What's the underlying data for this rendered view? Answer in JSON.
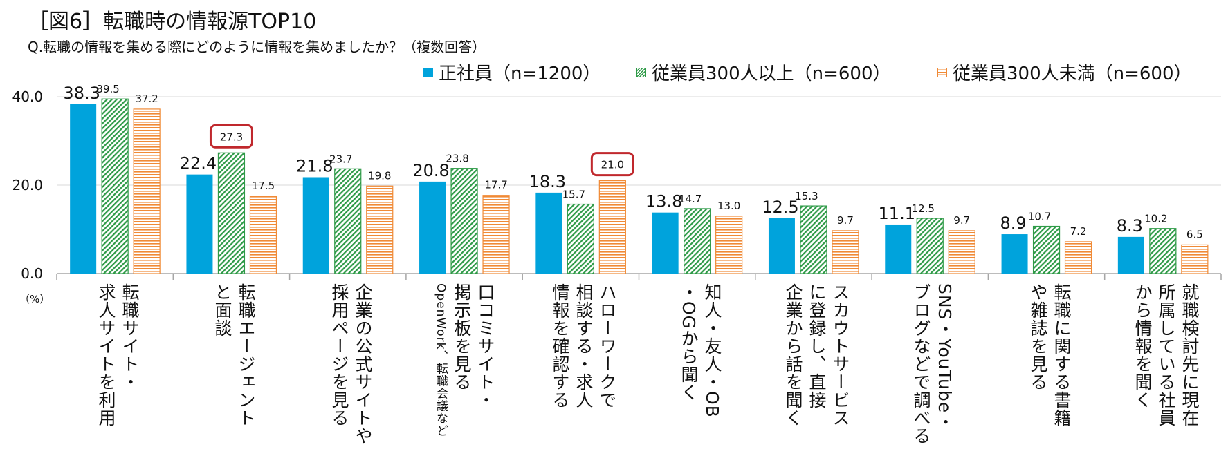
{
  "title": "［図6］転職時の情報源TOP10",
  "question": "Q.転職の情報を集める際にどのように情報を集めましたか？（複数回答）",
  "unit_label": "（%）",
  "legend": [
    {
      "label": "正社員（n=1200）",
      "color": "#00A3DC",
      "pattern": "solid"
    },
    {
      "label": "従業員300人以上（n=600）",
      "color": "#2E9A47",
      "pattern": "diagonal-stripes"
    },
    {
      "label": "従業員300人未満（n=600）",
      "color": "#F08A36",
      "pattern": "horizontal-stripes"
    }
  ],
  "chart_data": {
    "type": "bar",
    "title": "［図6］転職時の情報源TOP10",
    "ylim": [
      0,
      40
    ],
    "yticks": [
      "0.0",
      "20.0",
      "40.0"
    ],
    "grid": true,
    "legend_position": "top-right",
    "categories": [
      [
        "転職サイト・",
        "求人サイトを利用"
      ],
      [
        "転職エージェント",
        "と面談"
      ],
      [
        "企業の公式サイトや",
        "採用ページを見る"
      ],
      [
        "口コミサイト・",
        "掲示板を見る",
        "OpenWork、転職会議など"
      ],
      [
        "ハローワークで",
        "相談する・求人",
        "情報を確認する"
      ],
      [
        "知人・友人・OB",
        "・OGから聞く"
      ],
      [
        "スカウトサービス",
        "に登録し、直接",
        "企業から話を聞く"
      ],
      [
        "SNS・YouTube・",
        "ブログなどで調べる"
      ],
      [
        "転職に関する書籍",
        "や雑誌を見る"
      ],
      [
        "就職検討先に現在",
        "所属している社員",
        "から情報を聞く"
      ]
    ],
    "series": [
      {
        "name": "正社員（n=1200）",
        "values": [
          38.3,
          22.4,
          21.8,
          20.8,
          18.3,
          13.8,
          12.5,
          11.1,
          8.9,
          8.3
        ],
        "labels": [
          "38.3",
          "22.4",
          "21.8",
          "20.8",
          "18.3",
          "13.8",
          "12.5",
          "11.1",
          "8.9",
          "8.3"
        ]
      },
      {
        "name": "従業員300人以上（n=600）",
        "values": [
          39.5,
          27.3,
          23.7,
          23.8,
          15.7,
          14.7,
          15.3,
          12.5,
          10.7,
          10.2
        ],
        "labels": [
          "39.5",
          "27.3",
          "23.7",
          "23.8",
          "15.7",
          "14.7",
          "15.3",
          "12.5",
          "10.7",
          "10.2"
        ]
      },
      {
        "name": "従業員300人未満（n=600）",
        "values": [
          37.2,
          17.5,
          19.8,
          17.7,
          21.0,
          13.0,
          9.7,
          9.7,
          7.2,
          6.5
        ],
        "labels": [
          "37.2",
          "17.5",
          "19.8",
          "17.7",
          "21.0",
          "13.0",
          "9.7",
          "9.7",
          "7.2",
          "6.5"
        ]
      }
    ],
    "highlighted": [
      {
        "category_index": 1,
        "series_index": 1
      },
      {
        "category_index": 4,
        "series_index": 2
      }
    ],
    "colors": {
      "series": [
        "#00A3DC",
        "#2E9A47",
        "#F08A36"
      ],
      "highlight": "#C0282D",
      "grid": "#D9D9D9"
    }
  }
}
